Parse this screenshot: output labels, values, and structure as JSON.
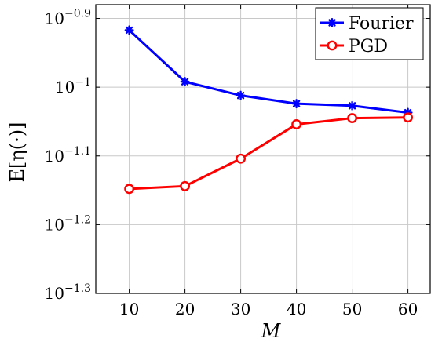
{
  "chart_data": {
    "type": "line",
    "x": [
      10,
      20,
      30,
      40,
      50,
      60
    ],
    "series": [
      {
        "name": "Fourier",
        "color": "#0000ff",
        "marker": "asterisk",
        "values": [
          -0.917,
          -0.992,
          -1.012,
          -1.024,
          -1.027,
          -1.037
        ]
      },
      {
        "name": "PGD",
        "color": "#ff0000",
        "marker": "circle-open",
        "values": [
          -1.148,
          -1.144,
          -1.104,
          -1.054,
          -1.045,
          -1.044
        ]
      }
    ],
    "xlabel": "M",
    "ylabel": "E[η(·)]",
    "ylim": [
      -1.3,
      -0.88
    ],
    "xlim": [
      4,
      64
    ],
    "y_scale": "log",
    "yticks": [
      {
        "value": -0.9,
        "base": "10",
        "exponent": "−0.9"
      },
      {
        "value": -1.0,
        "base": "10",
        "exponent": "−1"
      },
      {
        "value": -1.1,
        "base": "10",
        "exponent": "−1.1"
      },
      {
        "value": -1.2,
        "base": "10",
        "exponent": "−1.2"
      },
      {
        "value": -1.3,
        "base": "10",
        "exponent": "−1.3"
      }
    ],
    "xticks": [
      "10",
      "20",
      "30",
      "40",
      "50",
      "60"
    ],
    "grid": true,
    "legend_position": "top-right"
  }
}
